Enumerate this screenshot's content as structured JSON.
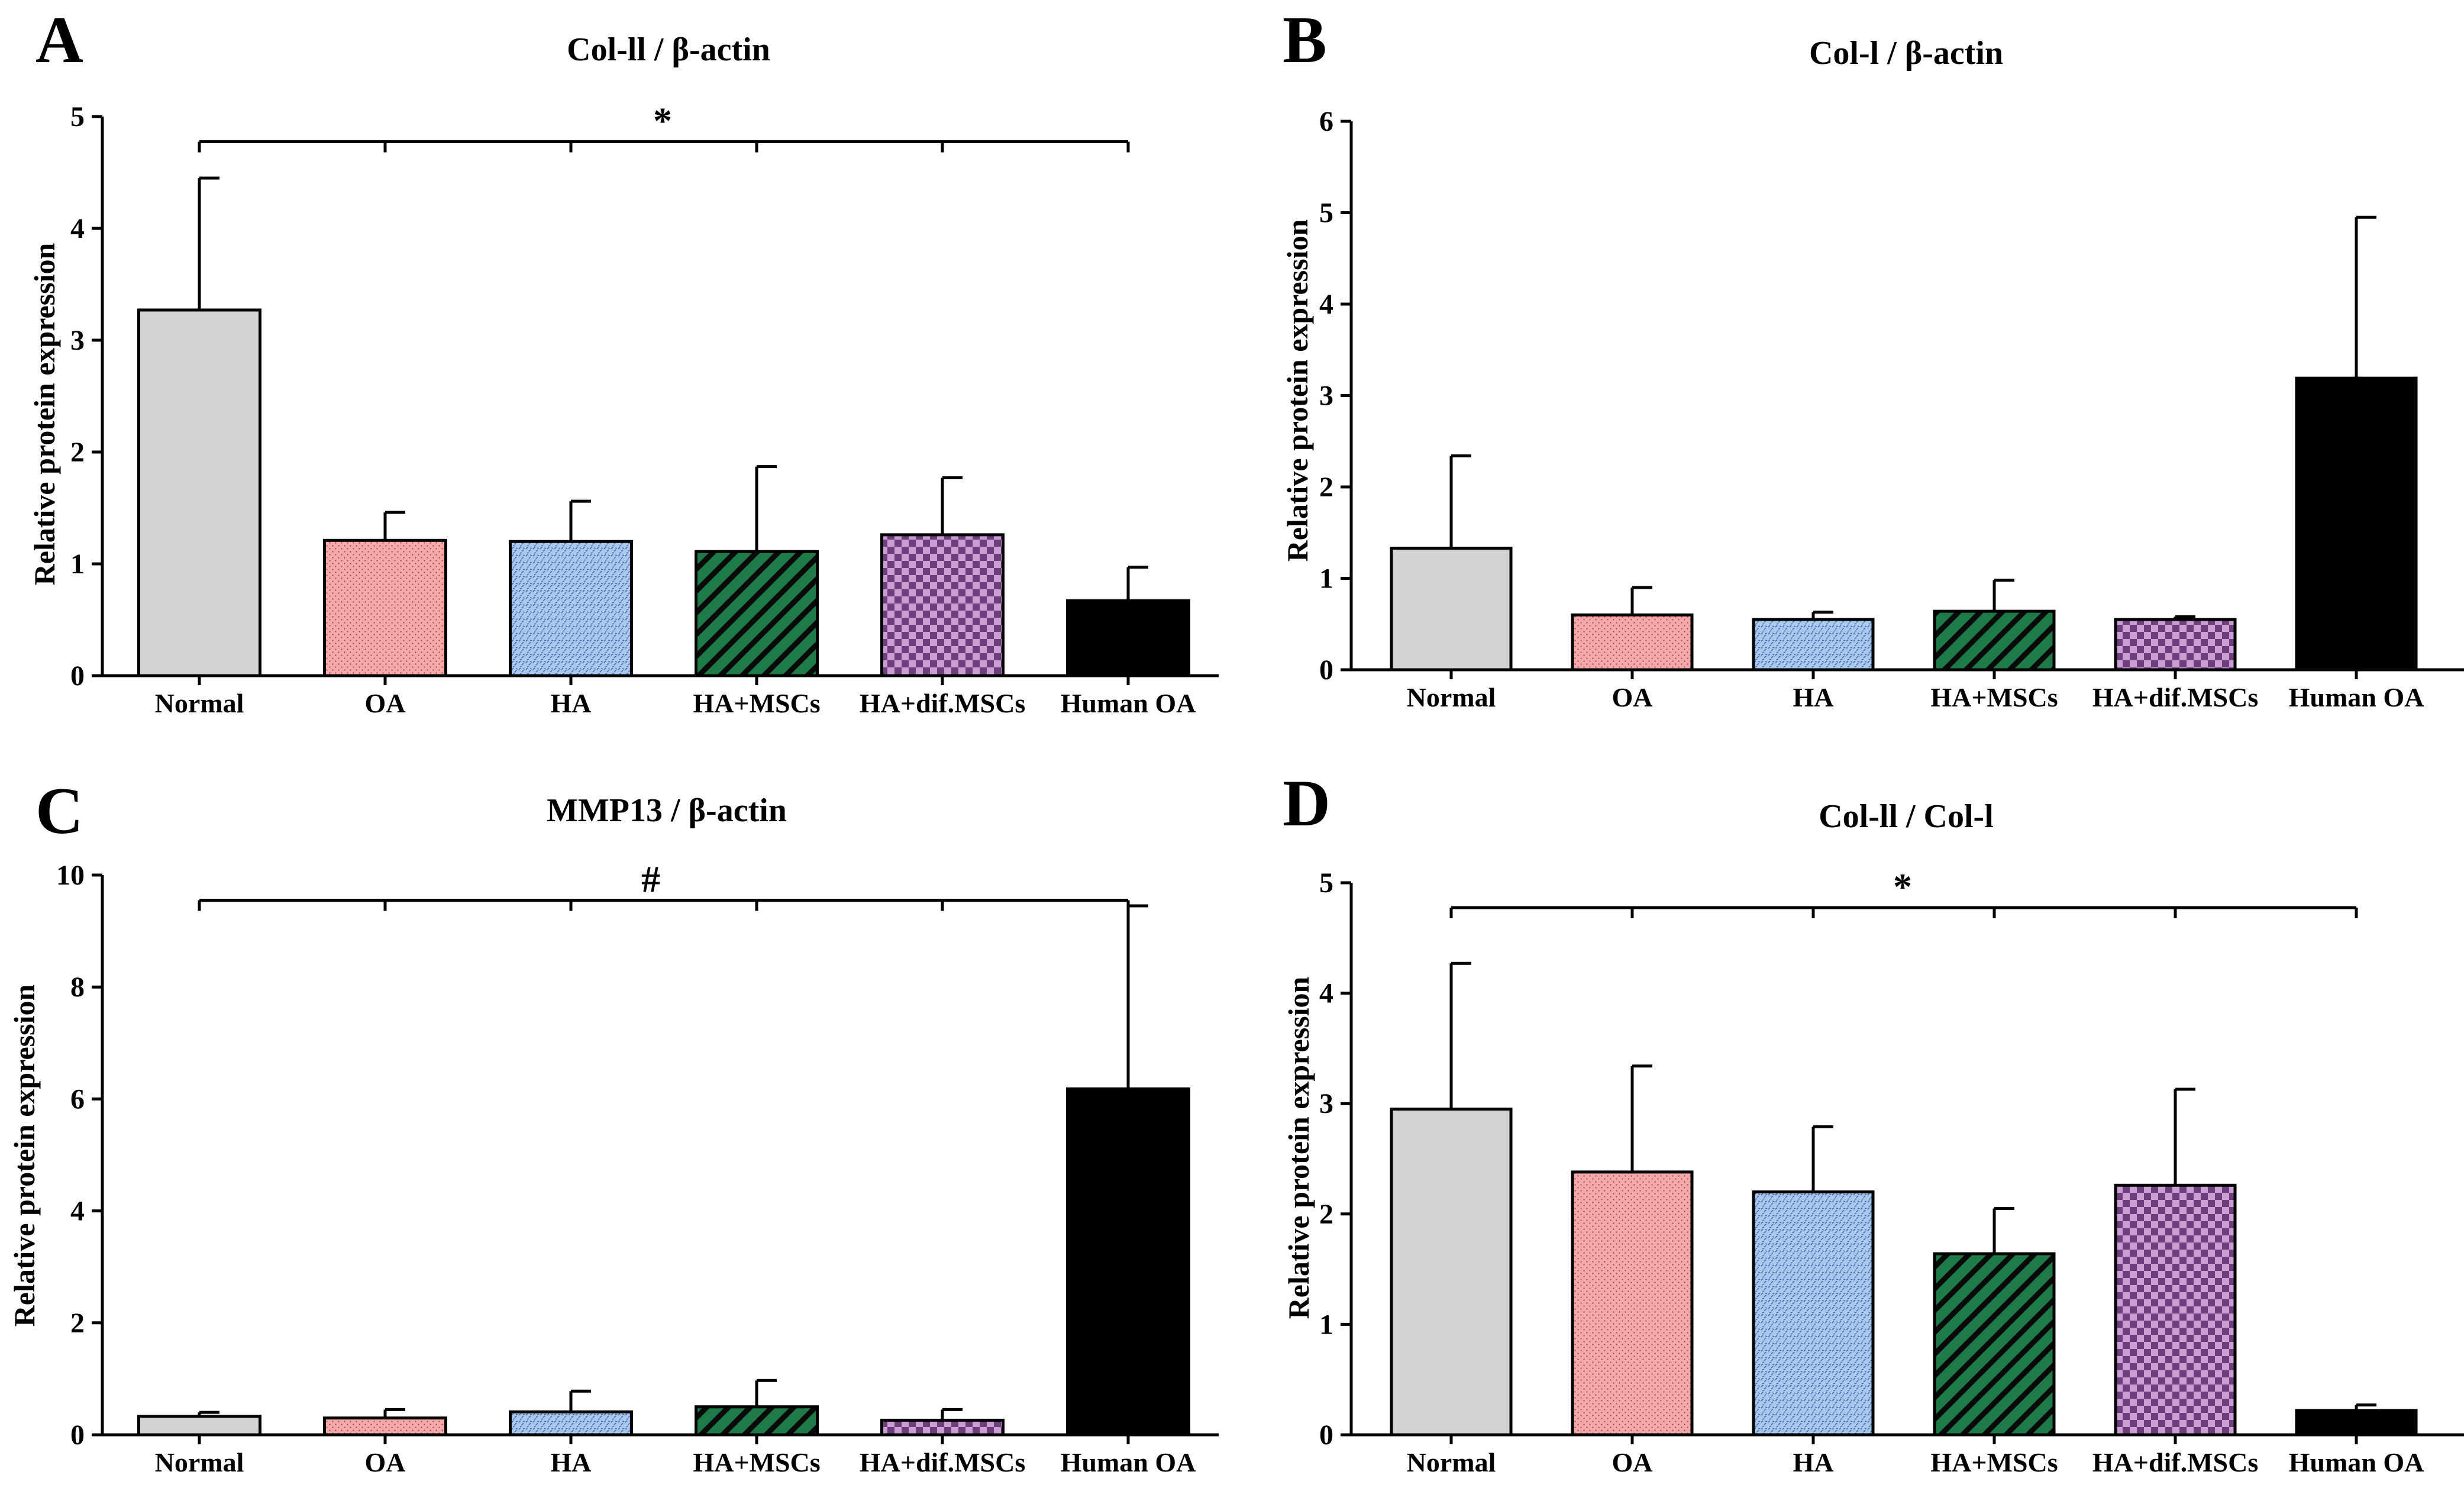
{
  "figure": {
    "categories": [
      "Normal",
      "OA",
      "HA",
      "HA+MSCs",
      "HA+dif.MSCs",
      "Human OA"
    ],
    "bar_colors": [
      "#d3d3d3",
      "#f7a8a8",
      "#a9c8ee",
      "#1e7a46",
      "#9b6aaa",
      "#000000"
    ],
    "bar_patterns": [
      "solid",
      "pink-dots",
      "blue-dots",
      "green-stripes",
      "purple-checker",
      "black"
    ]
  },
  "chart_data": [
    {
      "letter": "A",
      "type": "bar",
      "title": "Col-ll / β-actin",
      "ylabel": "Relative protein expression",
      "xlabel": "",
      "categories": [
        "Normal",
        "OA",
        "HA",
        "HA+MSCs",
        "HA+dif.MSCs",
        "Human OA"
      ],
      "values": [
        3.27,
        1.21,
        1.2,
        1.11,
        1.26,
        0.67
      ],
      "errors": [
        1.18,
        0.25,
        0.36,
        0.76,
        0.51,
        0.3
      ],
      "ylim": [
        0,
        5
      ],
      "yticks": [
        0,
        1,
        2,
        3,
        4,
        5
      ],
      "significance": {
        "symbol": "*",
        "groups": [
          "Normal",
          "Human OA"
        ]
      }
    },
    {
      "letter": "B",
      "type": "bar",
      "title": "Col-l / β-actin",
      "ylabel": "Relative protein expression",
      "xlabel": "",
      "categories": [
        "Normal",
        "OA",
        "HA",
        "HA+MSCs",
        "HA+dif.MSCs",
        "Human OA"
      ],
      "values": [
        1.33,
        0.6,
        0.55,
        0.64,
        0.55,
        3.19
      ],
      "errors": [
        1.01,
        0.3,
        0.08,
        0.34,
        0.03,
        1.76
      ],
      "ylim": [
        0,
        6
      ],
      "yticks": [
        0,
        1,
        2,
        3,
        4,
        5,
        6
      ],
      "significance": null
    },
    {
      "letter": "C",
      "type": "bar",
      "title": "MMP13 / β-actin",
      "ylabel": "Relative protein expression",
      "xlabel": "",
      "categories": [
        "Normal",
        "OA",
        "HA",
        "HA+MSCs",
        "HA+dif.MSCs",
        "Human OA"
      ],
      "values": [
        0.33,
        0.3,
        0.41,
        0.5,
        0.26,
        6.18
      ],
      "errors": [
        0.07,
        0.15,
        0.37,
        0.47,
        0.19,
        3.27
      ],
      "ylim": [
        0,
        10
      ],
      "yticks": [
        0,
        2,
        4,
        6,
        8,
        10
      ],
      "significance": {
        "symbol": "#",
        "groups": [
          "Normal",
          "Human OA"
        ]
      }
    },
    {
      "letter": "D",
      "type": "bar",
      "title": "Col-ll / Col-l",
      "ylabel": "Relative protein expression",
      "xlabel": "",
      "categories": [
        "Normal",
        "OA",
        "HA",
        "HA+MSCs",
        "HA+dif.MSCs",
        "Human OA"
      ],
      "values": [
        2.95,
        2.38,
        2.2,
        1.64,
        2.26,
        0.22
      ],
      "errors": [
        1.32,
        0.96,
        0.59,
        0.41,
        0.87,
        0.05
      ],
      "ylim": [
        0,
        5
      ],
      "yticks": [
        0,
        1,
        2,
        3,
        4,
        5
      ],
      "significance": {
        "symbol": "*",
        "groups": [
          "Normal",
          "Human OA"
        ]
      }
    }
  ]
}
